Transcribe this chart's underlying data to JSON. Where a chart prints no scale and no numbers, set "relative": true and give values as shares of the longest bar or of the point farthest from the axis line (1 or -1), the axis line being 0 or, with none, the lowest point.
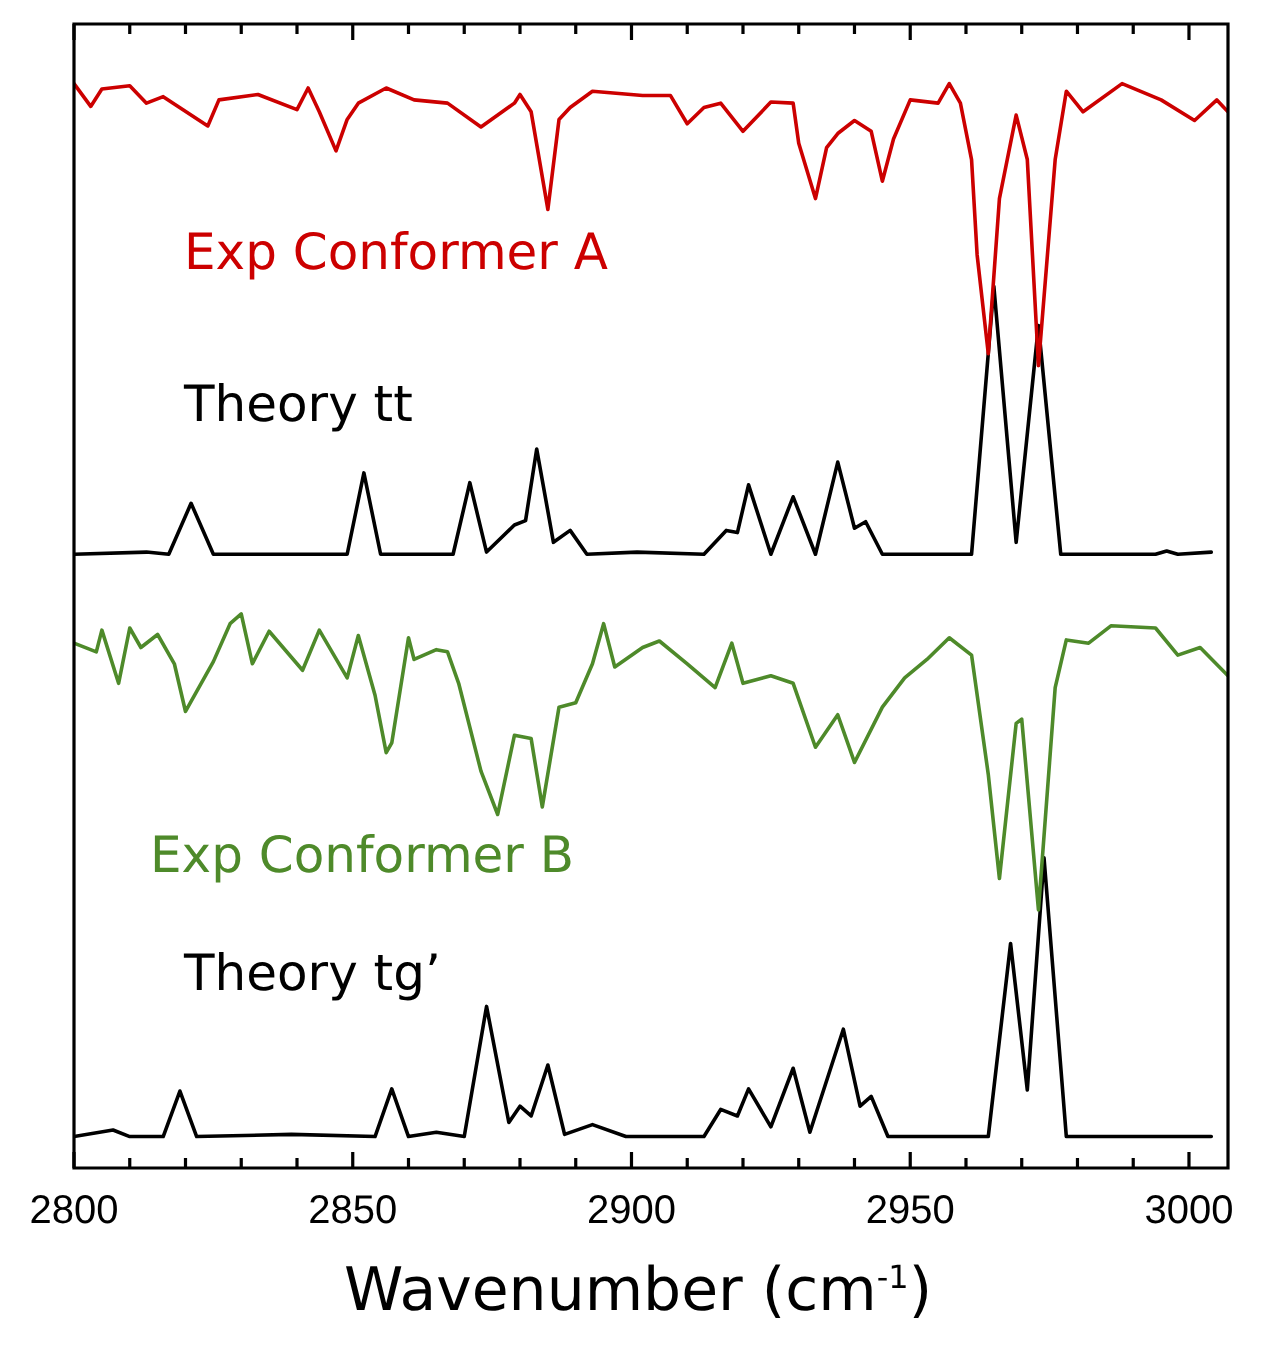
{
  "chart_data": {
    "type": "line",
    "relative": true,
    "xlabel": "Wavenumber (cm$^{-1}$)",
    "xlim": [
      2800,
      3007
    ],
    "xticks": [
      2800,
      {
        "value": 2810,
        "label": null
      },
      {
        "value": 2820,
        "label": null
      },
      {
        "value": 2830,
        "label": null
      },
      {
        "value": 2840,
        "label": null
      },
      2850,
      {
        "value": 2860,
        "label": null
      },
      {
        "value": 2870,
        "label": null
      },
      {
        "value": 2880,
        "label": null
      },
      {
        "value": 2890,
        "label": null
      },
      2900,
      {
        "value": 2910,
        "label": null
      },
      {
        "value": 2920,
        "label": null
      },
      {
        "value": 2930,
        "label": null
      },
      {
        "value": 2940,
        "label": null
      },
      2950,
      {
        "value": 2960,
        "label": null
      },
      {
        "value": 2970,
        "label": null
      },
      {
        "value": 2980,
        "label": null
      },
      {
        "value": 2990,
        "label": null
      },
      3000
    ],
    "grid": false,
    "legend": false,
    "marker": "none",
    "line_style": "solid",
    "series": [
      {
        "name": "Exp Conformer A",
        "color": "#cc0000",
        "x": [
          2800,
          2803,
          2805,
          2810,
          2813,
          2816,
          2824,
          2826,
          2833,
          2840,
          2842,
          2844,
          2847,
          2849,
          2851,
          2856,
          2861,
          2867,
          2873,
          2879,
          2880,
          2882,
          2885,
          2887,
          2889,
          2893,
          2902,
          2907,
          2910,
          2913,
          2916,
          2920,
          2925,
          2929,
          2930,
          2933,
          2935,
          2937,
          2940,
          2943,
          2945,
          2947,
          2950,
          2955,
          2957,
          2959,
          2961,
          2962,
          2964,
          2966,
          2969,
          2971,
          2973,
          2976,
          2978,
          2981,
          2988,
          2995,
          3001,
          3005,
          3007
        ],
        "values": [
          1.0,
          0.979,
          0.995,
          0.998,
          0.982,
          0.988,
          0.961,
          0.985,
          0.99,
          0.976,
          0.996,
          0.974,
          0.938,
          0.967,
          0.982,
          0.996,
          0.985,
          0.982,
          0.96,
          0.982,
          0.99,
          0.974,
          0.884,
          0.967,
          0.978,
          0.993,
          0.989,
          0.989,
          0.963,
          0.978,
          0.982,
          0.956,
          0.983,
          0.982,
          0.945,
          0.894,
          0.941,
          0.954,
          0.966,
          0.956,
          0.91,
          0.949,
          0.985,
          0.982,
          1.0,
          0.982,
          0.93,
          0.842,
          0.751,
          0.894,
          0.971,
          0.93,
          0.74,
          0.93,
          0.993,
          0.974,
          1.0,
          0.985,
          0.966,
          0.985,
          0.974
        ]
      },
      {
        "name": "Theory tt",
        "color": "#000000",
        "x": [
          2800,
          2813,
          2817,
          2821,
          2825,
          2849,
          2852,
          2855,
          2868,
          2871,
          2874,
          2879,
          2881,
          2883,
          2886,
          2889,
          2892,
          2901,
          2913,
          2917,
          2919,
          2921,
          2925,
          2929,
          2933,
          2937,
          2940,
          2942,
          2945,
          2961,
          2965,
          2969,
          2973,
          2977,
          2994,
          2996,
          2998,
          3004
        ],
        "values": [
          0.566,
          0.568,
          0.566,
          0.613,
          0.566,
          0.566,
          0.641,
          0.566,
          0.566,
          0.632,
          0.568,
          0.593,
          0.597,
          0.663,
          0.577,
          0.588,
          0.566,
          0.568,
          0.566,
          0.588,
          0.586,
          0.63,
          0.566,
          0.619,
          0.566,
          0.651,
          0.59,
          0.596,
          0.566,
          0.566,
          0.813,
          0.577,
          0.777,
          0.566,
          0.566,
          0.569,
          0.566,
          0.568
        ]
      },
      {
        "name": "Exp Conformer B",
        "color": "#4e8a2a",
        "x": [
          2800,
          2804,
          2805,
          2808,
          2810,
          2812,
          2815,
          2818,
          2820,
          2825,
          2828,
          2830,
          2832,
          2835,
          2841,
          2844,
          2849,
          2851,
          2854,
          2856,
          2857,
          2860,
          2861,
          2865,
          2867,
          2869,
          2873,
          2876,
          2879,
          2882,
          2884,
          2887,
          2890,
          2893,
          2895,
          2897,
          2902,
          2905,
          2910,
          2915,
          2918,
          2920,
          2925,
          2929,
          2933,
          2937,
          2940,
          2945,
          2949,
          2953,
          2957,
          2961,
          2964,
          2966,
          2969,
          2970,
          2973,
          2976,
          2978,
          2982,
          2986,
          2994,
          2998,
          3002,
          3007
        ],
        "values": [
          0.484,
          0.476,
          0.496,
          0.447,
          0.498,
          0.48,
          0.492,
          0.465,
          0.421,
          0.467,
          0.502,
          0.511,
          0.465,
          0.495,
          0.459,
          0.496,
          0.452,
          0.491,
          0.436,
          0.383,
          0.392,
          0.489,
          0.469,
          0.478,
          0.476,
          0.447,
          0.366,
          0.326,
          0.399,
          0.396,
          0.333,
          0.425,
          0.429,
          0.465,
          0.502,
          0.462,
          0.48,
          0.486,
          0.465,
          0.443,
          0.484,
          0.447,
          0.454,
          0.447,
          0.388,
          0.418,
          0.374,
          0.425,
          0.452,
          0.469,
          0.489,
          0.473,
          0.363,
          0.267,
          0.41,
          0.414,
          0.238,
          0.443,
          0.487,
          0.484,
          0.5,
          0.498,
          0.473,
          0.48,
          0.454
        ]
      },
      {
        "name": "Theory tg’",
        "color": "#000000",
        "x": [
          2800,
          2807,
          2810,
          2816,
          2819,
          2822,
          2839,
          2854,
          2857,
          2860,
          2865,
          2870,
          2874,
          2878,
          2880,
          2882,
          2885,
          2888,
          2893,
          2899,
          2913,
          2916,
          2919,
          2921,
          2925,
          2929,
          2932,
          2938,
          2941,
          2943,
          2946,
          2964,
          2968,
          2971,
          2974,
          2978,
          3004
        ],
        "values": [
          0.029,
          0.035,
          0.029,
          0.029,
          0.071,
          0.029,
          0.031,
          0.029,
          0.073,
          0.029,
          0.033,
          0.029,
          0.149,
          0.042,
          0.057,
          0.048,
          0.095,
          0.031,
          0.04,
          0.029,
          0.029,
          0.054,
          0.048,
          0.073,
          0.038,
          0.092,
          0.033,
          0.128,
          0.057,
          0.066,
          0.029,
          0.029,
          0.207,
          0.072,
          0.286,
          0.029,
          0.029
        ]
      }
    ]
  }
}
